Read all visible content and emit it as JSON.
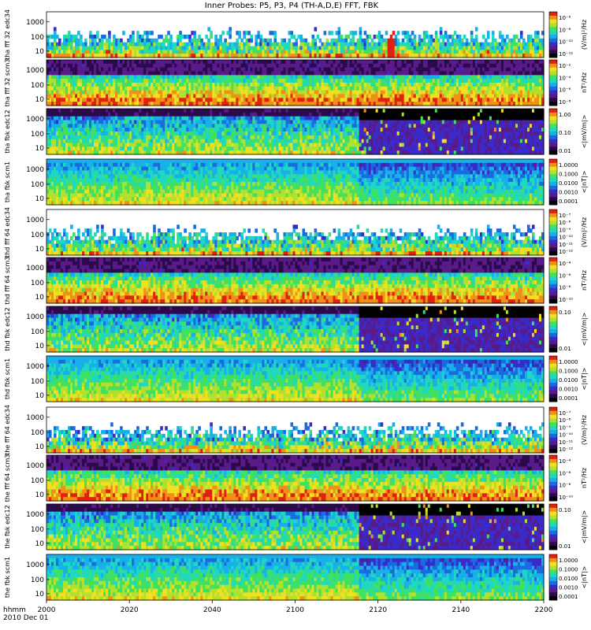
{
  "title": "Inner Probes: P5, P3, P4 (TH-A,D,E) FFT, FBK",
  "colors": {
    "spectrum": [
      "#000000",
      "#2a0a4a",
      "#5a1a8a",
      "#3a2ac8",
      "#1a6ae0",
      "#18b0e8",
      "#20d8c0",
      "#40e060",
      "#b0e030",
      "#f0e020",
      "#f09018",
      "#e02010"
    ]
  },
  "chart_data": {
    "type": "heatmap",
    "title": "Inner Probes: P5, P3, P4 (TH-A,D,E) FFT, FBK",
    "time_axis": {
      "label_line1": "hhmm",
      "label_line2": "2010 Dec 01",
      "ticks": [
        "2000",
        "2020",
        "2040",
        "2100",
        "2120",
        "2140",
        "2200"
      ],
      "range": [
        "2000",
        "2200"
      ]
    },
    "panels": [
      {
        "id": "tha-fff32-edc34",
        "ylabel": [
          "tha",
          "fff",
          "32",
          "edc34"
        ],
        "yticks": [
          "1000",
          "100",
          "10"
        ],
        "cbar_label": "(V/m)²/Hz",
        "cbar_ticks": [
          "10⁻⁶",
          "10⁻⁸",
          "10⁻¹⁰",
          "10⁻¹²"
        ],
        "style": "efield-sparse",
        "has_spike": true
      },
      {
        "id": "tha-fff32-scm3",
        "ylabel": [
          "tha",
          "fff",
          "32",
          "scm3"
        ],
        "yticks": [
          "1000",
          "100",
          "10"
        ],
        "cbar_label": "nT²/Hz",
        "cbar_ticks": [
          "10⁻²",
          "10⁻⁴",
          "10⁻⁶",
          "10⁻⁸"
        ],
        "style": "scm-fff",
        "has_spike": false
      },
      {
        "id": "tha-fbk-edc12",
        "ylabel": [
          "tha",
          "fbk",
          "edc12"
        ],
        "yticks": [
          "1000",
          "100",
          "10"
        ],
        "cbar_label": "<|mV/m|>",
        "cbar_ticks": [
          "1.00",
          "0.10",
          "0.01"
        ],
        "style": "fbk-e",
        "has_spike": false
      },
      {
        "id": "tha-fbk-scm1",
        "ylabel": [
          "tha",
          "fbk",
          "scm1"
        ],
        "yticks": [
          "1000",
          "100",
          "10"
        ],
        "cbar_label": "<|nT|>",
        "cbar_ticks": [
          "1.0000",
          "0.1000",
          "0.0100",
          "0.0010",
          "0.0001"
        ],
        "style": "fbk-b",
        "has_spike": false
      },
      {
        "id": "thd-fff64-edc34",
        "ylabel": [
          "thd",
          "fff",
          "64",
          "edc34"
        ],
        "yticks": [
          "1000",
          "100",
          "10"
        ],
        "cbar_label": "(V/m)²/Hz",
        "cbar_ticks": [
          "10⁻⁷",
          "10⁻⁸",
          "10⁻⁹",
          "10⁻¹⁰",
          "10⁻¹¹",
          "10⁻¹²"
        ],
        "style": "efield-sparse",
        "has_spike": false
      },
      {
        "id": "thd-fff64-scm3",
        "ylabel": [
          "thd",
          "fff",
          "64",
          "scm3"
        ],
        "yticks": [
          "1000",
          "100",
          "10"
        ],
        "cbar_label": "nT²/Hz",
        "cbar_ticks": [
          "10⁻⁴",
          "10⁻⁶",
          "10⁻⁸",
          "10⁻¹⁰"
        ],
        "style": "scm-fff",
        "has_spike": false
      },
      {
        "id": "thd-fbk-edc12",
        "ylabel": [
          "thd",
          "fbk",
          "edc12"
        ],
        "yticks": [
          "1000",
          "100",
          "10"
        ],
        "cbar_label": "<|mV/m|>",
        "cbar_ticks": [
          "0.10",
          "0.01"
        ],
        "style": "fbk-e",
        "has_spike": false
      },
      {
        "id": "thd-fbk-scm1",
        "ylabel": [
          "thd",
          "fbk",
          "scm1"
        ],
        "yticks": [
          "1000",
          "100",
          "10"
        ],
        "cbar_label": "<|nT|>",
        "cbar_ticks": [
          "1.0000",
          "0.1000",
          "0.0100",
          "0.0010",
          "0.0001"
        ],
        "style": "fbk-b",
        "has_spike": false
      },
      {
        "id": "the-fff64-edc34",
        "ylabel": [
          "the",
          "fff",
          "64",
          "edc34"
        ],
        "yticks": [
          "1000",
          "100",
          "10"
        ],
        "cbar_label": "(V/m)²/Hz",
        "cbar_ticks": [
          "10⁻⁷",
          "10⁻⁸",
          "10⁻⁹",
          "10⁻¹⁰",
          "10⁻¹¹",
          "10⁻¹²"
        ],
        "style": "efield-sparse",
        "has_spike": false
      },
      {
        "id": "the-fff64-scm3",
        "ylabel": [
          "the",
          "fff",
          "64",
          "scm3"
        ],
        "yticks": [
          "1000",
          "100",
          "10"
        ],
        "cbar_label": "nT²/Hz",
        "cbar_ticks": [
          "10⁻⁴",
          "10⁻⁶",
          "10⁻⁸",
          "10⁻¹⁰"
        ],
        "style": "scm-fff",
        "has_spike": false
      },
      {
        "id": "the-fbk-edc12",
        "ylabel": [
          "the",
          "fbk",
          "edc12"
        ],
        "yticks": [
          "1000",
          "100",
          "10"
        ],
        "cbar_label": "<|mV/m|>",
        "cbar_ticks": [
          "0.10",
          "0.01"
        ],
        "style": "fbk-e",
        "has_spike": false
      },
      {
        "id": "the-fbk-scm1",
        "ylabel": [
          "the",
          "fbk",
          "scm1"
        ],
        "yticks": [
          "1000",
          "100",
          "10"
        ],
        "cbar_label": "<|nT|>",
        "cbar_ticks": [
          "1.0000",
          "0.1000",
          "0.0100",
          "0.0010",
          "0.0001"
        ],
        "style": "fbk-b",
        "has_spike": false
      }
    ]
  }
}
